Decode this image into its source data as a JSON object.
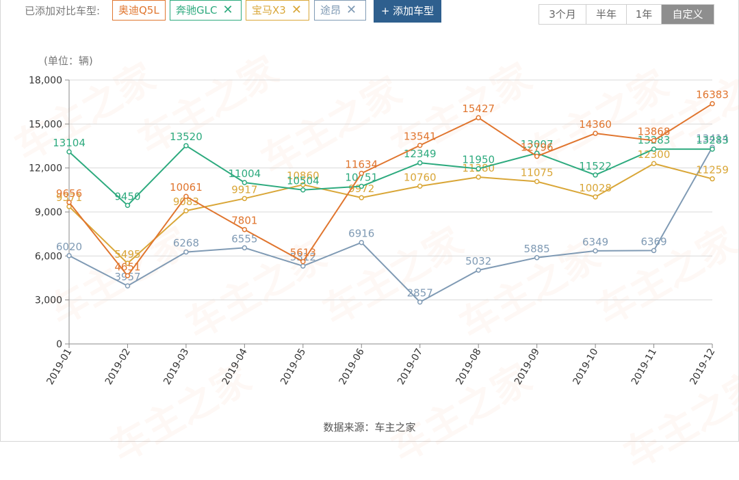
{
  "header": {
    "added_label": "已添加对比车型:",
    "models": [
      {
        "name": "奥迪Q5L",
        "color": "#e0752e",
        "removable": false
      },
      {
        "name": "奔驰GLC",
        "color": "#2daa7e",
        "removable": true
      },
      {
        "name": "宝马X3",
        "color": "#d9a637",
        "removable": true
      },
      {
        "name": "途昂",
        "color": "#7f9ab4",
        "removable": true
      }
    ],
    "remove_icon": "close-icon",
    "add_button": "+ 添加车型",
    "ranges": [
      "3个月",
      "半年",
      "1年",
      "自定义"
    ],
    "active_range": "自定义"
  },
  "footer": {
    "source": "数据来源：车主之家"
  },
  "watermark_text": "车主之家",
  "chart_data": {
    "type": "line",
    "ylabel": "(单位：辆)",
    "ylim": [
      0,
      18000
    ],
    "yticks": [
      0,
      3000,
      6000,
      9000,
      12000,
      15000,
      18000
    ],
    "ytick_labels": [
      "0",
      "3,000",
      "6,000",
      "9,000",
      "12,000",
      "15,000",
      "18,000"
    ],
    "categories": [
      "2019-01",
      "2019-02",
      "2019-03",
      "2019-04",
      "2019-05",
      "2019-06",
      "2019-07",
      "2019-08",
      "2019-09",
      "2019-10",
      "2019-11",
      "2019-12"
    ],
    "grid": true,
    "series": [
      {
        "name": "途昂",
        "color": "#7f9ab4",
        "values": [
          6020,
          3957,
          6268,
          6555,
          5312,
          6916,
          2857,
          5032,
          5885,
          6349,
          6369,
          13414
        ]
      },
      {
        "name": "宝马X3",
        "color": "#d9a637",
        "values": [
          9371,
          5495,
          9083,
          9917,
          10860,
          9972,
          10760,
          11380,
          11075,
          10028,
          12300,
          11259
        ]
      },
      {
        "name": "奔驰GLC",
        "color": "#2daa7e",
        "values": [
          13104,
          9450,
          13520,
          11004,
          10504,
          10751,
          12349,
          11950,
          13007,
          11522,
          13283,
          13283
        ]
      },
      {
        "name": "奥迪Q5L",
        "color": "#e0752e",
        "values": [
          9656,
          4651,
          10061,
          7801,
          5613,
          11634,
          13541,
          15427,
          12796,
          14360,
          13868,
          16383
        ]
      }
    ]
  }
}
